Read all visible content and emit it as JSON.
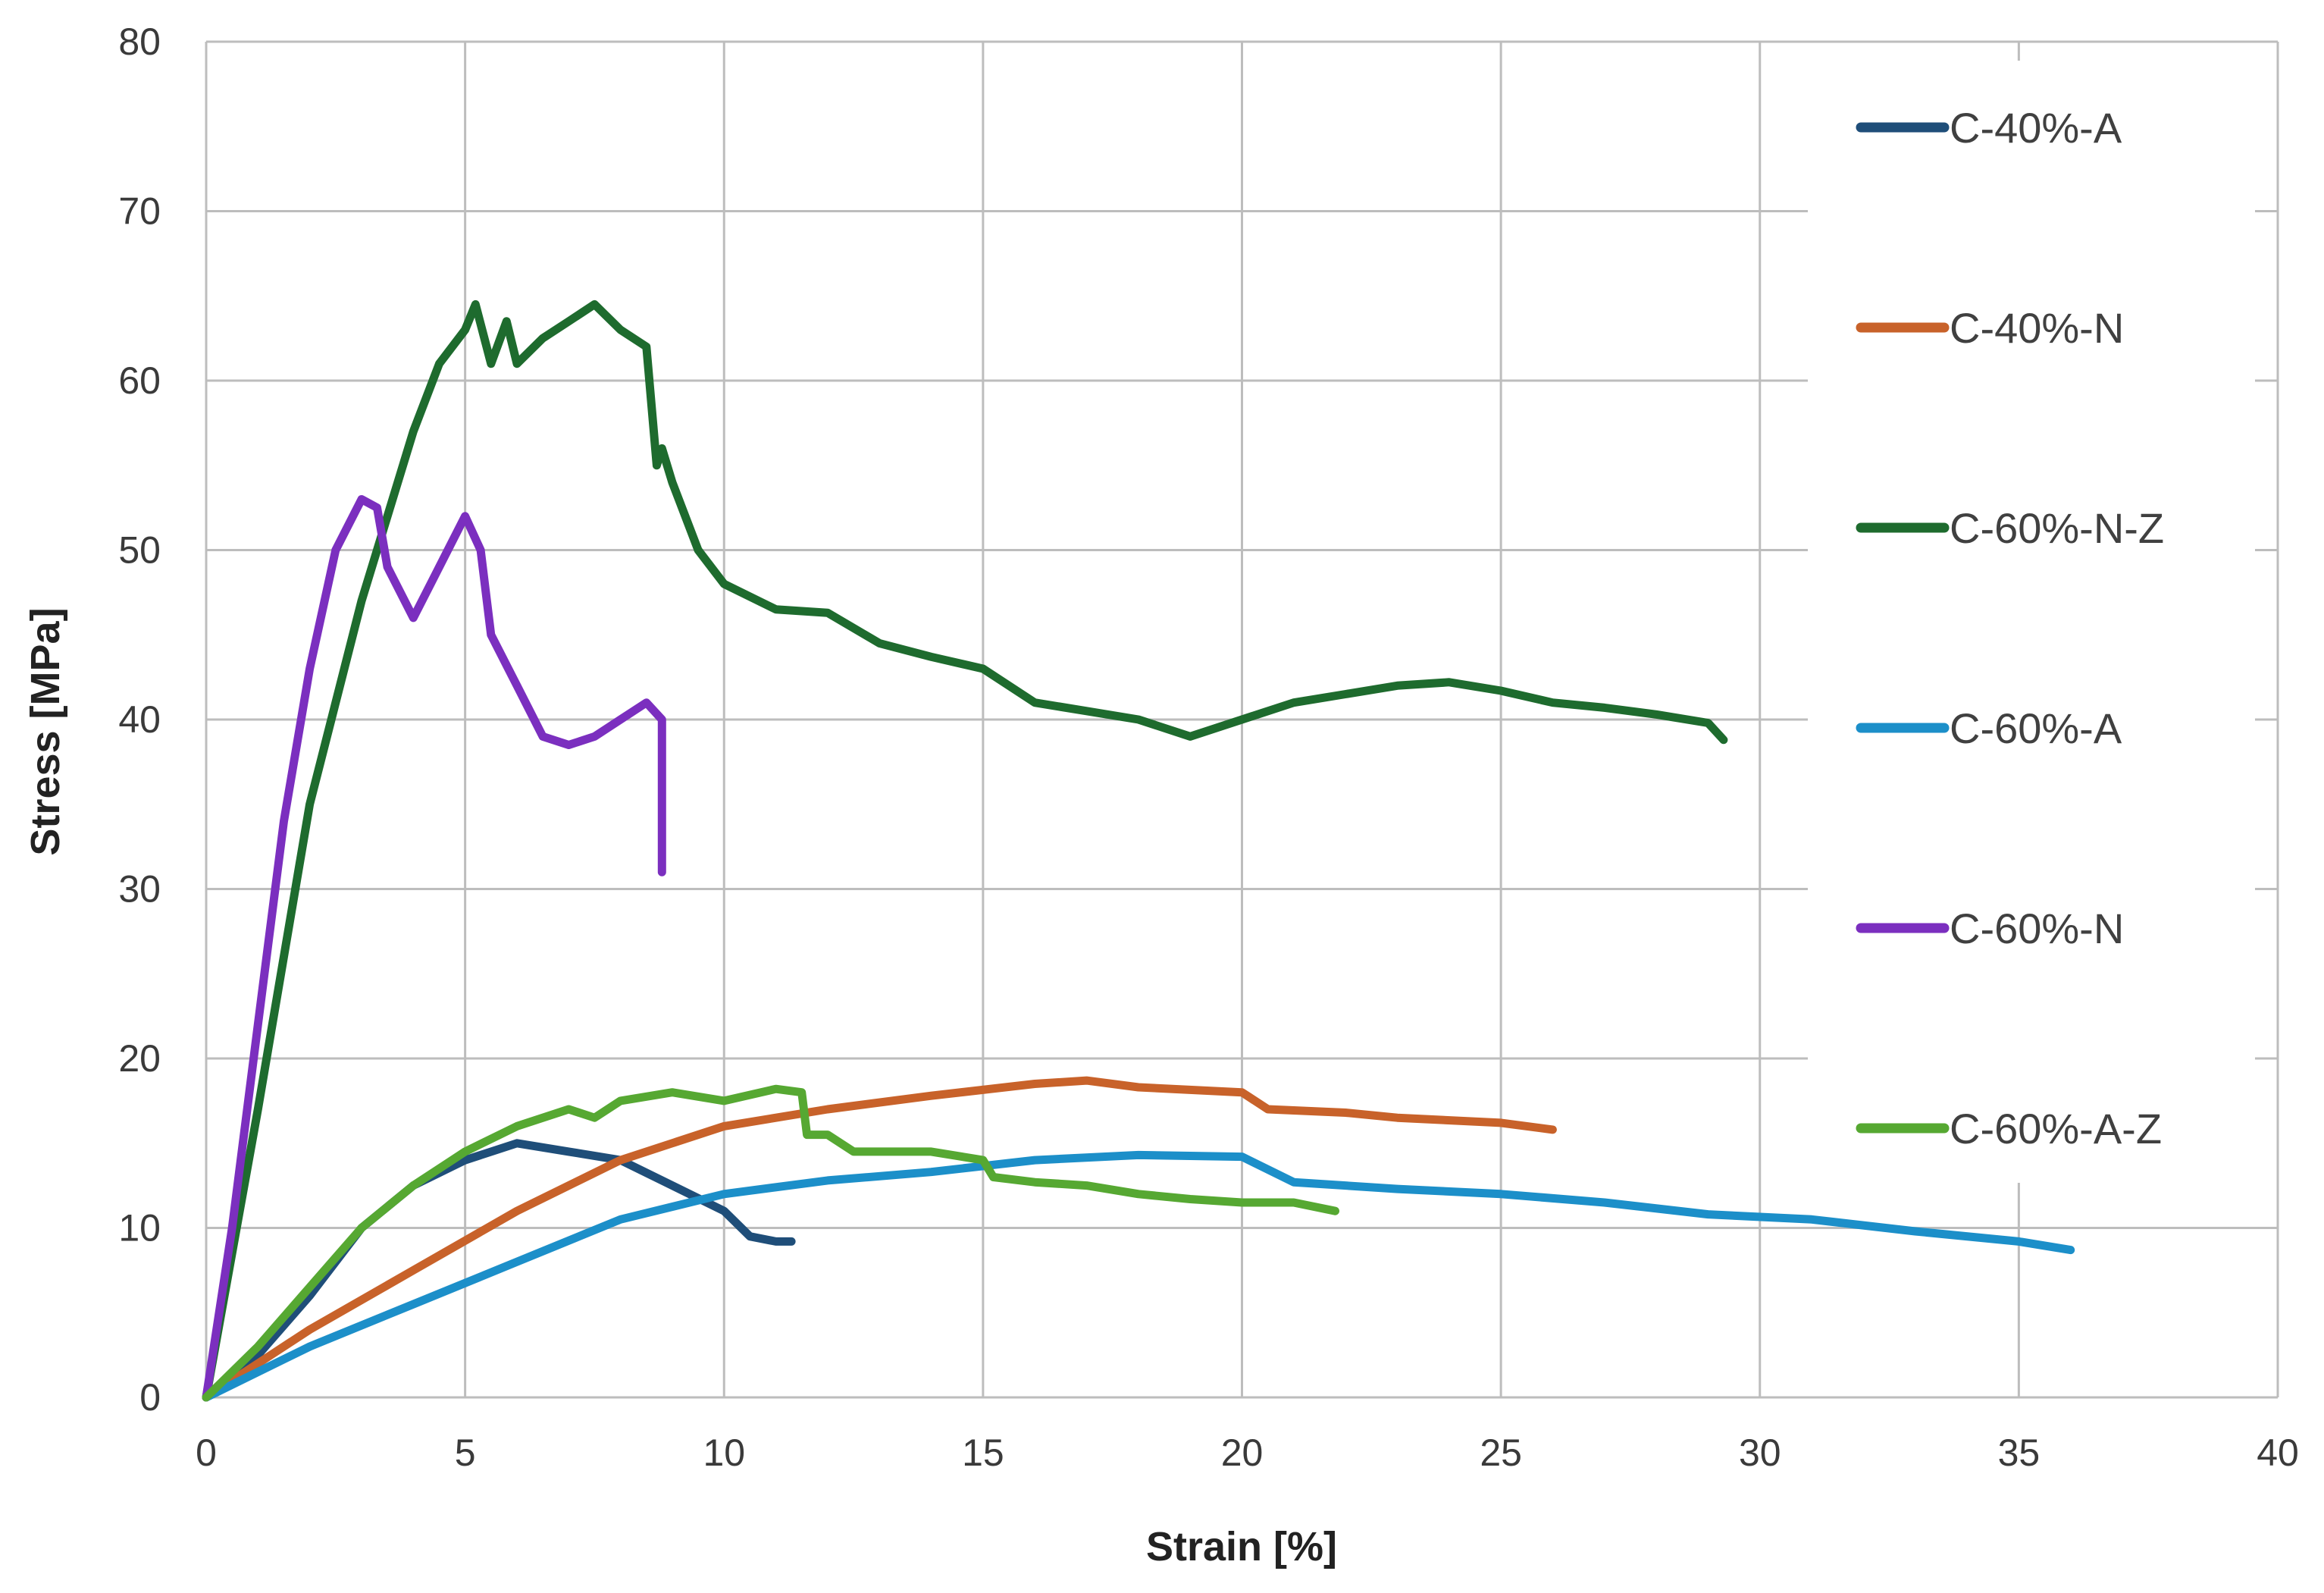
{
  "chart_data": {
    "type": "line",
    "title": "",
    "xlabel": "Strain [%]",
    "ylabel": "Stress [MPa]",
    "xlim": [
      0,
      40
    ],
    "ylim": [
      0,
      80
    ],
    "xticks": [
      0,
      5,
      10,
      15,
      20,
      25,
      30,
      35,
      40
    ],
    "yticks": [
      0,
      10,
      20,
      30,
      40,
      50,
      60,
      70,
      80
    ],
    "grid": true,
    "legend_position": "right",
    "series": [
      {
        "name": "C-40%-A",
        "color": "#1f4e79",
        "x": [
          0,
          1,
          2,
          3,
          4,
          5,
          6,
          7,
          8,
          9,
          10,
          10.5,
          11,
          11.3
        ],
        "y": [
          0,
          2.5,
          6,
          10,
          12.5,
          14,
          15,
          14.5,
          14,
          12.5,
          11,
          9.5,
          9.2,
          9.2
        ]
      },
      {
        "name": "C-40%-N",
        "color": "#c8622a",
        "x": [
          0,
          1,
          2,
          4,
          6,
          8,
          10,
          12,
          14,
          16,
          17,
          18,
          20,
          20.5,
          22,
          23,
          25,
          26
        ],
        "y": [
          0,
          2,
          4,
          7.5,
          11,
          14,
          16,
          17,
          17.8,
          18.5,
          18.7,
          18.3,
          18,
          17,
          16.8,
          16.5,
          16.2,
          15.8
        ]
      },
      {
        "name": "C-60%-N-Z",
        "color": "#1e6b2e",
        "x": [
          0,
          1,
          2,
          3,
          4,
          4.5,
          5,
          5.2,
          5.5,
          5.8,
          6,
          6.5,
          7,
          7.5,
          8,
          8.5,
          8.7,
          8.8,
          9,
          9.5,
          10,
          11,
          12,
          13,
          14,
          15,
          16,
          17,
          18,
          19,
          20,
          21,
          22,
          23,
          24,
          25,
          26,
          27,
          28,
          29,
          29.3
        ],
        "y": [
          0,
          17,
          35,
          47,
          57,
          61,
          63,
          64.5,
          61,
          63.5,
          61,
          62.5,
          63.5,
          64.5,
          63,
          62,
          55,
          56,
          54,
          50,
          48,
          46.5,
          46.3,
          44.5,
          43.7,
          43,
          41,
          40.5,
          40,
          39,
          40,
          41,
          41.5,
          42,
          42.2,
          41.7,
          41,
          40.7,
          40.3,
          39.8,
          38.8
        ]
      },
      {
        "name": "C-60%-A",
        "color": "#1c8fc9",
        "x": [
          0,
          2,
          4,
          6,
          8,
          10,
          12,
          14,
          16,
          18,
          20,
          21,
          23,
          25,
          27,
          29,
          31,
          33,
          35,
          36
        ],
        "y": [
          0,
          3,
          5.5,
          8,
          10.5,
          12,
          12.8,
          13.3,
          14,
          14.3,
          14.2,
          12.7,
          12.3,
          12,
          11.5,
          10.8,
          10.5,
          9.8,
          9.2,
          8.7
        ]
      },
      {
        "name": "C-60%-N",
        "color": "#7b2fbf",
        "x": [
          0,
          0.5,
          1,
          1.5,
          2,
          2.5,
          3,
          3.3,
          3.5,
          4,
          4.5,
          5,
          5.3,
          5.5,
          6,
          6.5,
          7,
          7.5,
          8,
          8.5,
          8.8,
          8.8
        ],
        "y": [
          0,
          10,
          22,
          34,
          43,
          50,
          53,
          52.5,
          49,
          46,
          49,
          52,
          50,
          45,
          42,
          39,
          38.5,
          39,
          40,
          41,
          40,
          31
        ]
      },
      {
        "name": "C-60%-A-Z",
        "color": "#56a832",
        "x": [
          0,
          1,
          2,
          3,
          4,
          5,
          6,
          7,
          7.5,
          8,
          9,
          10,
          11,
          11.5,
          11.6,
          12,
          12.5,
          13,
          14,
          15,
          15.2,
          16,
          17,
          18,
          19,
          20,
          21,
          21.8
        ],
        "y": [
          0,
          3,
          6.5,
          10,
          12.5,
          14.5,
          16,
          17,
          16.5,
          17.5,
          18,
          17.5,
          18.2,
          18,
          15.5,
          15.5,
          14.5,
          14.5,
          14.5,
          14,
          13,
          12.7,
          12.5,
          12,
          11.7,
          11.5,
          11.5,
          11
        ]
      }
    ]
  }
}
